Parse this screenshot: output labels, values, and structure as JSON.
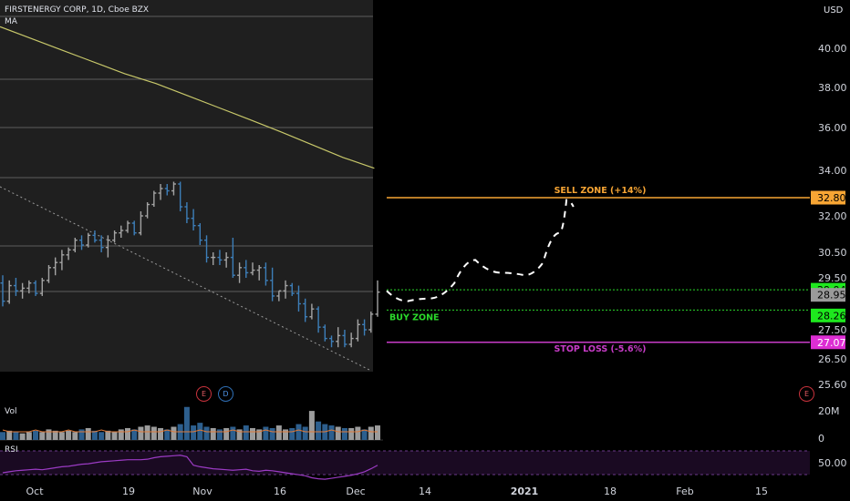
{
  "header": {
    "title": "FIRSTENERGY CORP, 1D, Cboe BZX",
    "indicator": "MA",
    "currency": "USD"
  },
  "panes": {
    "volume_label": "Vol",
    "rsi_label": "RSI"
  },
  "events": {
    "earnings": "E",
    "dividend": "D",
    "earnings_right": "E"
  },
  "colors": {
    "up": "#a4a4a4",
    "down": "#3d7eb8",
    "ma": "#c8c86a",
    "sell": "#f7a534",
    "buy": "#2bd92b",
    "stop": "#c83cc8",
    "rsi": "#9b3bc4"
  },
  "chart_data": {
    "type": "ohlc",
    "x_ticks": [
      "Oct",
      "19",
      "Nov",
      "16",
      "Dec",
      "14",
      "2021",
      "18",
      "Feb",
      "15"
    ],
    "y_ticks": [
      "40.00",
      "38.00",
      "36.00",
      "34.00",
      "32.00",
      "30.50",
      "29.50",
      "27.50",
      "26.50",
      "25.60"
    ],
    "volume_ticks": [
      "20M",
      "0"
    ],
    "rsi_ticks": [
      "50.00"
    ],
    "price_tags": [
      {
        "value": "32.80",
        "color": "#f7a534",
        "text": "#000000"
      },
      {
        "value": "29.04",
        "color": "#1ee81e",
        "text": "#000000"
      },
      {
        "value": "28.95",
        "color": "#9a9a9a",
        "text": "#000000"
      },
      {
        "value": "28.26",
        "color": "#1ee81e",
        "text": "#000000"
      },
      {
        "value": "27.07",
        "color": "#dd2ed3",
        "text": "#ffffff"
      }
    ],
    "zones": {
      "sell": {
        "label": "SELL ZONE (+14%)",
        "value": 32.8
      },
      "buy_upper": 29.04,
      "buy_lower": 28.26,
      "buy_label": "BUY ZONE",
      "stop": {
        "label": "STOP LOSS (-5.6%)",
        "value": 27.07
      }
    },
    "bars": [
      [
        29.3,
        29.6,
        28.4,
        28.6
      ],
      [
        28.6,
        29.4,
        28.5,
        29.2
      ],
      [
        29.2,
        29.5,
        28.8,
        29.0
      ],
      [
        29.0,
        29.3,
        28.7,
        29.1
      ],
      [
        29.1,
        29.4,
        28.9,
        29.3
      ],
      [
        29.3,
        29.4,
        28.8,
        28.9
      ],
      [
        28.9,
        29.5,
        28.8,
        29.4
      ],
      [
        29.4,
        30.0,
        29.3,
        29.9
      ],
      [
        29.9,
        30.3,
        29.6,
        30.1
      ],
      [
        30.1,
        30.6,
        29.8,
        30.4
      ],
      [
        30.4,
        30.7,
        30.2,
        30.6
      ],
      [
        30.6,
        31.1,
        30.5,
        31.0
      ],
      [
        31.0,
        31.2,
        30.6,
        30.8
      ],
      [
        30.8,
        31.3,
        30.7,
        31.2
      ],
      [
        31.2,
        31.4,
        30.9,
        31.0
      ],
      [
        31.0,
        31.2,
        30.5,
        30.7
      ],
      [
        30.7,
        31.2,
        30.3,
        31.0
      ],
      [
        31.0,
        31.4,
        30.9,
        31.3
      ],
      [
        31.3,
        31.6,
        31.1,
        31.4
      ],
      [
        31.4,
        31.8,
        31.3,
        31.7
      ],
      [
        31.7,
        31.8,
        31.2,
        31.3
      ],
      [
        31.3,
        32.2,
        31.2,
        32.0
      ],
      [
        32.0,
        32.6,
        31.9,
        32.5
      ],
      [
        32.5,
        33.1,
        32.4,
        33.0
      ],
      [
        33.0,
        33.4,
        32.7,
        33.2
      ],
      [
        33.2,
        33.4,
        32.9,
        33.1
      ],
      [
        33.1,
        33.5,
        32.9,
        33.4
      ],
      [
        33.4,
        33.5,
        32.2,
        32.4
      ],
      [
        32.4,
        32.6,
        31.7,
        31.9
      ],
      [
        31.9,
        32.3,
        31.4,
        31.6
      ],
      [
        31.6,
        31.7,
        30.8,
        31.0
      ],
      [
        31.0,
        31.2,
        30.1,
        30.3
      ],
      [
        30.3,
        30.5,
        30.0,
        30.3
      ],
      [
        30.3,
        30.6,
        30.0,
        30.2
      ],
      [
        30.2,
        30.5,
        29.9,
        30.3
      ],
      [
        30.3,
        31.1,
        29.5,
        29.6
      ],
      [
        29.6,
        30.1,
        29.3,
        29.9
      ],
      [
        29.9,
        30.2,
        29.5,
        29.7
      ],
      [
        29.7,
        30.1,
        29.6,
        29.8
      ],
      [
        29.8,
        30.0,
        29.4,
        29.9
      ],
      [
        29.9,
        30.1,
        29.2,
        29.4
      ],
      [
        29.4,
        29.9,
        28.6,
        28.8
      ],
      [
        28.8,
        29.0,
        28.6,
        29.0
      ],
      [
        29.0,
        29.4,
        28.7,
        29.2
      ],
      [
        29.2,
        29.3,
        28.8,
        28.9
      ],
      [
        28.9,
        29.2,
        28.2,
        28.5
      ],
      [
        28.5,
        28.7,
        27.8,
        28.0
      ],
      [
        28.0,
        28.5,
        27.9,
        28.3
      ],
      [
        28.3,
        28.4,
        27.4,
        27.6
      ],
      [
        27.6,
        27.7,
        27.1,
        27.2
      ],
      [
        27.2,
        27.3,
        26.9,
        27.1
      ],
      [
        27.1,
        27.6,
        26.9,
        27.3
      ],
      [
        27.3,
        27.5,
        26.9,
        27.0
      ],
      [
        27.0,
        27.4,
        26.9,
        27.2
      ],
      [
        27.2,
        27.9,
        27.1,
        27.7
      ],
      [
        27.7,
        27.9,
        27.3,
        27.5
      ],
      [
        27.5,
        28.2,
        27.4,
        28.1
      ],
      [
        28.1,
        29.4,
        28.0,
        28.95
      ]
    ],
    "volume": [
      6,
      7,
      6,
      5,
      6,
      7,
      6,
      8,
      7,
      6,
      7,
      6,
      8,
      9,
      7,
      6,
      7,
      6,
      8,
      9,
      8,
      10,
      11,
      10,
      9,
      8,
      10,
      12,
      25,
      11,
      13,
      10,
      9,
      8,
      9,
      10,
      8,
      11,
      9,
      8,
      10,
      9,
      11,
      8,
      9,
      12,
      10,
      22,
      14,
      12,
      11,
      10,
      9,
      9,
      10,
      8,
      10,
      11
    ],
    "ma_line": [
      [
        0,
        41.1
      ],
      [
        20,
        40.7
      ],
      [
        40,
        40.3
      ],
      [
        60,
        39.9
      ],
      [
        80,
        39.5
      ],
      [
        100,
        39.1
      ],
      [
        120,
        38.7
      ],
      [
        150,
        38.2
      ],
      [
        180,
        37.6
      ],
      [
        210,
        37.0
      ],
      [
        240,
        36.4
      ],
      [
        270,
        35.8
      ],
      [
        300,
        35.2
      ],
      [
        330,
        34.6
      ],
      [
        360,
        34.1
      ]
    ],
    "rsi_values": [
      40,
      42,
      44,
      45,
      46,
      47,
      46,
      48,
      50,
      52,
      53,
      55,
      57,
      58,
      60,
      62,
      63,
      64,
      65,
      66,
      66,
      66,
      67,
      70,
      72,
      73,
      74,
      75,
      72,
      55,
      52,
      50,
      48,
      47,
      46,
      45,
      46,
      47,
      44,
      43,
      45,
      44,
      42,
      40,
      38,
      36,
      34,
      30,
      28,
      27,
      29,
      31,
      33,
      35,
      38,
      42,
      48,
      55
    ],
    "projection": [
      [
        29.0,
        0
      ],
      [
        28.6,
        18
      ],
      [
        28.7,
        36
      ],
      [
        29.3,
        58
      ],
      [
        30.2,
        76
      ],
      [
        29.7,
        98
      ],
      [
        29.6,
        118
      ],
      [
        30.1,
        134
      ],
      [
        31.3,
        148
      ],
      [
        32.7,
        154
      ],
      [
        32.4,
        160
      ]
    ]
  }
}
